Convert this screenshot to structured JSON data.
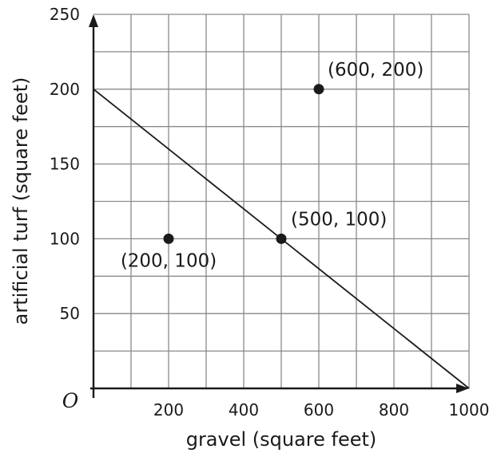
{
  "chart_data": {
    "type": "scatter",
    "title": "",
    "xlabel": "gravel (square feet)",
    "ylabel": "artificial turf (square feet)",
    "origin_label": "O",
    "xlim": [
      0,
      1000
    ],
    "ylim": [
      0,
      250
    ],
    "grid": true,
    "grid_x_step": 100,
    "grid_y_step": 25,
    "x_ticks": [
      {
        "value": 200,
        "label": "200"
      },
      {
        "value": 400,
        "label": "400"
      },
      {
        "value": 600,
        "label": "600"
      },
      {
        "value": 800,
        "label": "800"
      },
      {
        "value": 1000,
        "label": "1000"
      }
    ],
    "y_ticks": [
      {
        "value": 50,
        "label": "50"
      },
      {
        "value": 100,
        "label": "100"
      },
      {
        "value": 150,
        "label": "150"
      },
      {
        "value": 200,
        "label": "200"
      },
      {
        "value": 250,
        "label": "250"
      }
    ],
    "line": {
      "x": [
        0,
        1000
      ],
      "y": [
        200,
        0
      ]
    },
    "points": [
      {
        "x": 200,
        "y": 100,
        "label": "(200, 100)"
      },
      {
        "x": 500,
        "y": 100,
        "label": "(500, 100)"
      },
      {
        "x": 600,
        "y": 200,
        "label": "(600, 200)"
      }
    ],
    "colors": {
      "grid": "#8a8a8a",
      "axis": "#1a1a1a",
      "line": "#1a1a1a",
      "point": "#1a1a1a"
    }
  }
}
